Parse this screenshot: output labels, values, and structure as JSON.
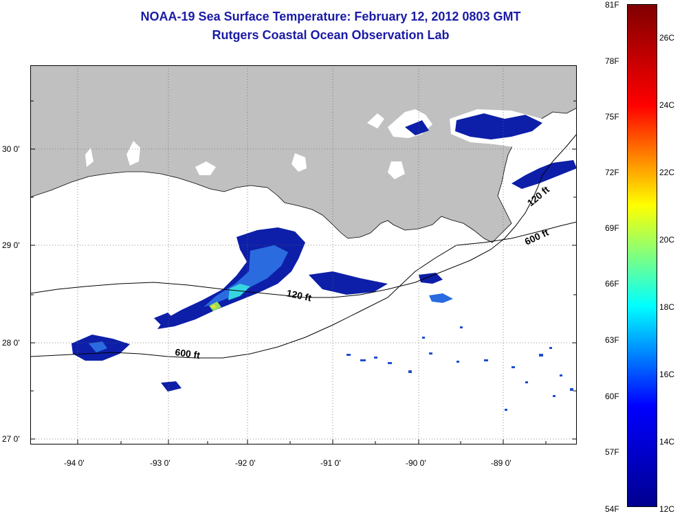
{
  "title": {
    "line1": "NOAA-19 Sea Surface Temperature:  February 12, 2012 0803 GMT",
    "line2": "Rutgers Coastal Ocean Observation Lab"
  },
  "map": {
    "lon_labels": [
      "-94 0'",
      "-93 0'",
      "-92 0'",
      "-91 0'",
      "-90 0'",
      "-89 0'"
    ],
    "lat_labels": [
      "30 0'",
      "29 0'",
      "28 0'",
      "27 0'"
    ],
    "contour_labels": [
      "120 ft",
      "600 ft",
      "120 ft",
      "600 ft"
    ],
    "colors": {
      "land": "#c0c0c0",
      "cloud": "#ffffff",
      "sst_cold": "#0d1fa8",
      "grid": "#555555"
    }
  },
  "colorbar": {
    "fahrenheit_labels": [
      "81F",
      "78F",
      "75F",
      "72F",
      "69F",
      "66F",
      "63F",
      "60F",
      "57F",
      "54F"
    ],
    "celsius_labels": [
      "26C",
      "24C",
      "22C",
      "20C",
      "18C",
      "16C",
      "14C",
      "12C"
    ],
    "color_stops": [
      "#00008f",
      "#0000ff",
      "#00ffff",
      "#ffff00",
      "#ff0000",
      "#800000"
    ]
  }
}
